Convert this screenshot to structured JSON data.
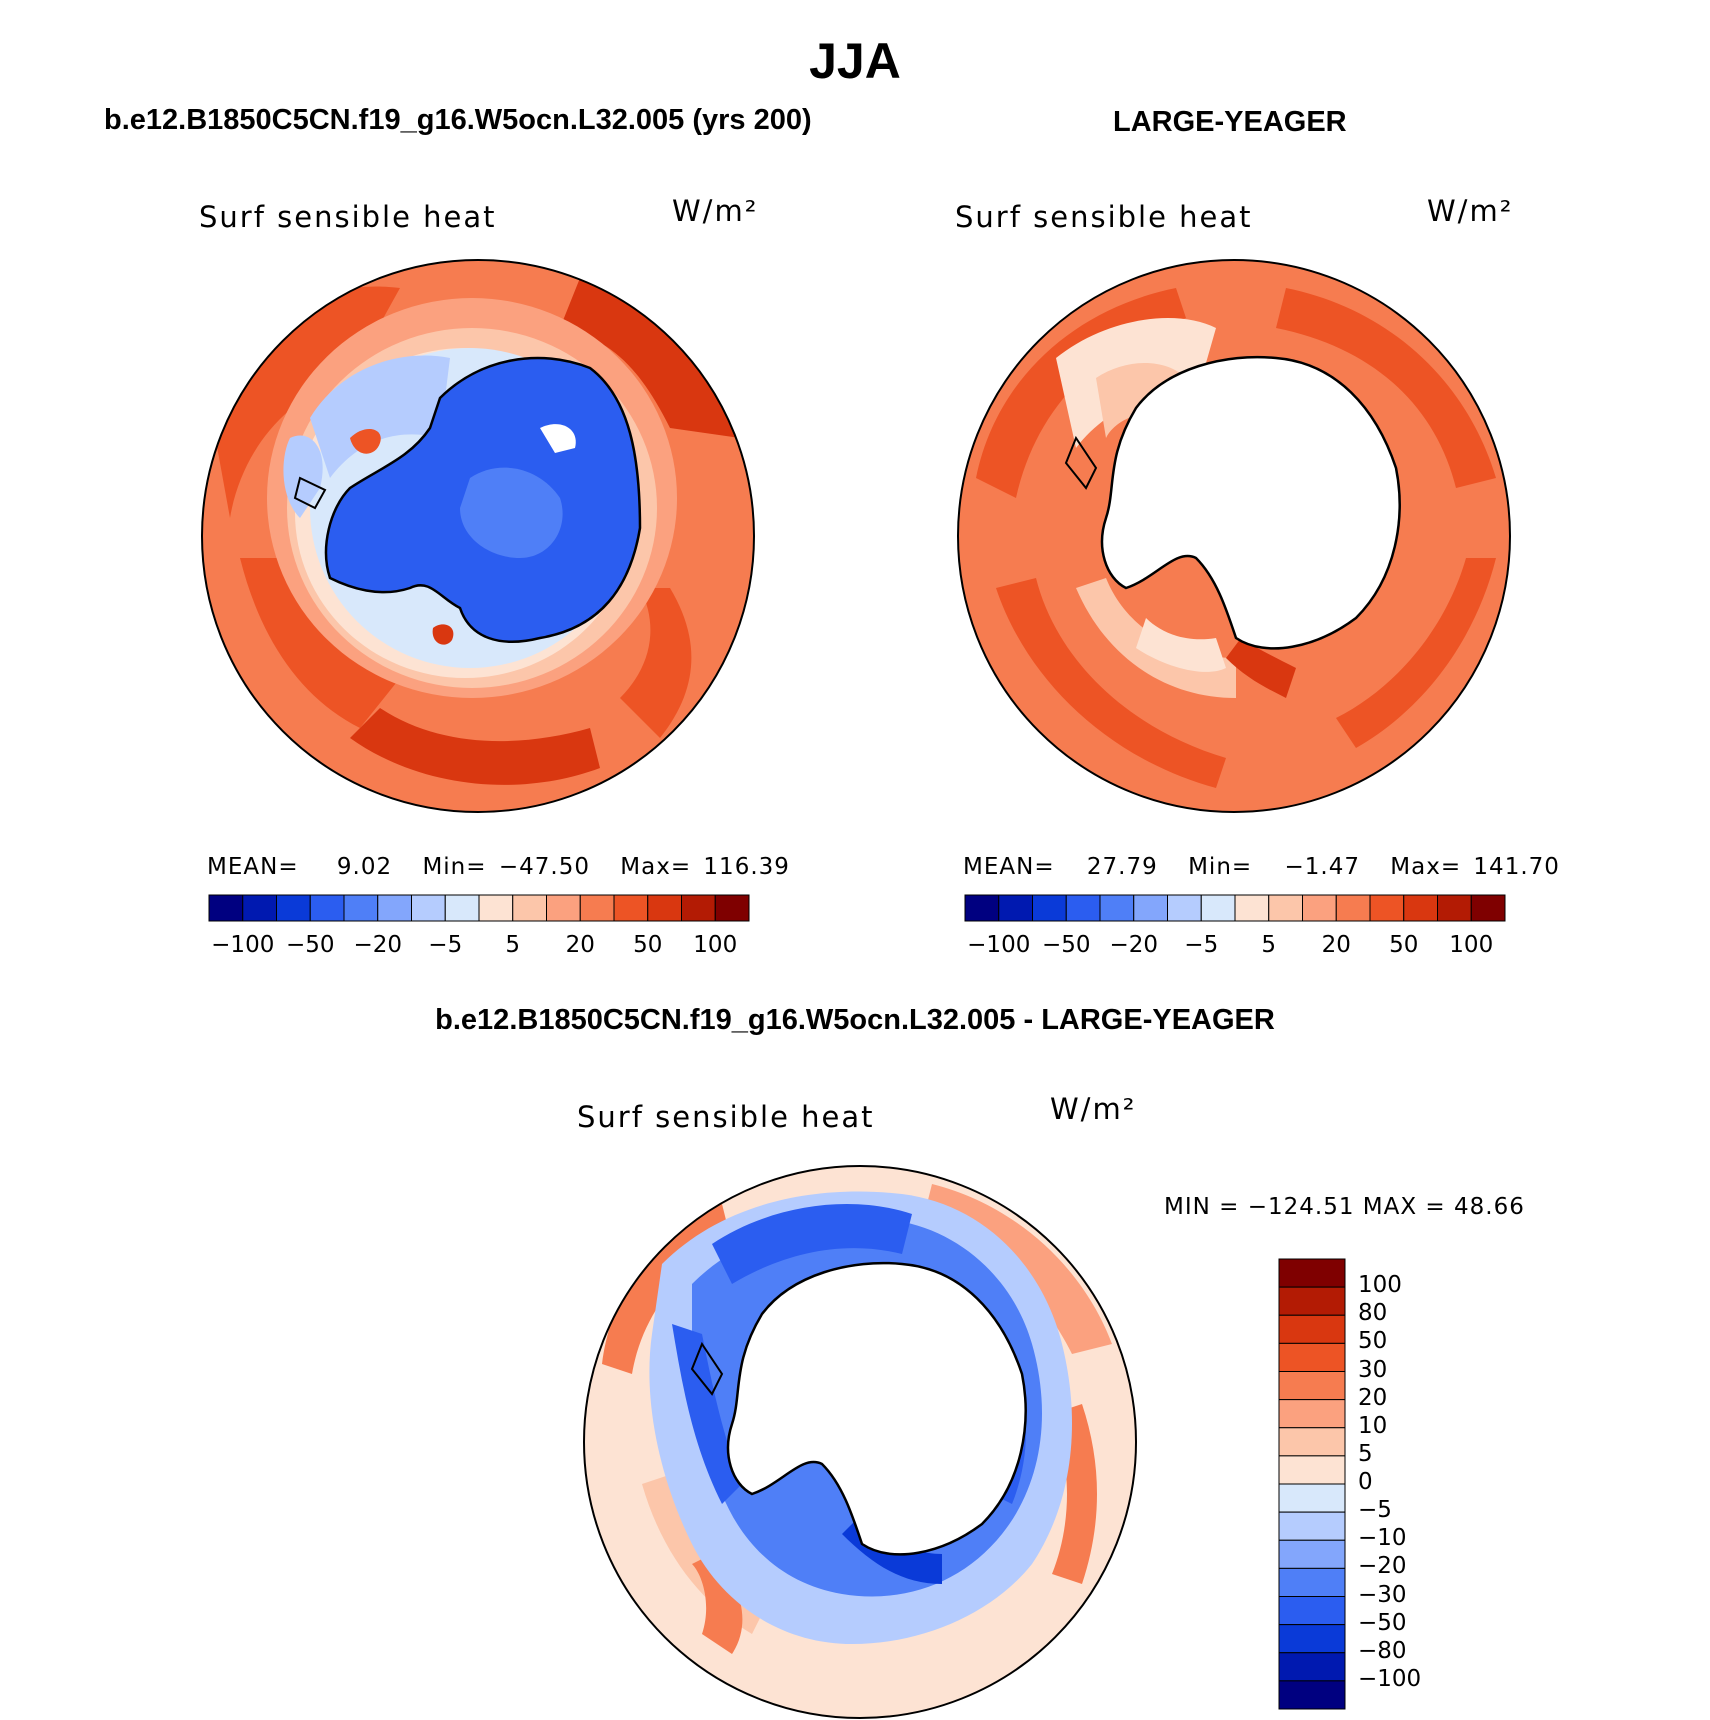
{
  "figure": {
    "title": "JJA",
    "variable": "Surf sensible heat",
    "units": "W/m²"
  },
  "panels": {
    "case": {
      "title": "b.e12.B1850C5CN.f19_g16.W5ocn.L32.005 (yrs 200)",
      "mean_label": "MEAN=",
      "mean": "9.02",
      "min_label": "Min=",
      "min": "−47.50",
      "max_label": "Max=",
      "max": "116.39"
    },
    "reference": {
      "title": "LARGE-YEAGER",
      "mean_label": "MEAN=",
      "mean": "27.79",
      "min_label": "Min=",
      "min": "−1.47",
      "max_label": "Max=",
      "max": "141.70"
    },
    "difference": {
      "title": "b.e12.B1850C5CN.f19_g16.W5ocn.L32.005 - LARGE-YEAGER",
      "minmax_text": "MIN = −124.51 MAX =  48.66"
    }
  },
  "colorbars": {
    "horizontal": {
      "colors": [
        "#000080",
        "#0019b0",
        "#0a3ad8",
        "#2b5df0",
        "#4f7ff7",
        "#83a6fc",
        "#b5ccfe",
        "#d8e8fb",
        "#fde3d3",
        "#fcc6aa",
        "#fba17f",
        "#f67c50",
        "#ed5425",
        "#d93710",
        "#b31b04",
        "#7f0000"
      ],
      "tick_labels": [
        "−100",
        "−50",
        "−20",
        "−5",
        "5",
        "20",
        "50",
        "100"
      ]
    },
    "vertical": {
      "colors": [
        "#7f0000",
        "#b31b04",
        "#d93710",
        "#ed5425",
        "#f67c50",
        "#fba17f",
        "#fcc6aa",
        "#fde3d3",
        "#d8e8fb",
        "#b5ccfe",
        "#83a6fc",
        "#4f7ff7",
        "#2b5df0",
        "#0a3ad8",
        "#0019b0",
        "#000080"
      ],
      "tick_labels": [
        "100",
        "80",
        "50",
        "30",
        "20",
        "10",
        "5",
        "0",
        "−5",
        "−10",
        "−20",
        "−30",
        "−50",
        "−80",
        "−100"
      ]
    }
  },
  "colors": {
    "ocean_warm": "#f67c50",
    "ocean_hot": "#d93710",
    "land_cold": "#2b5df0",
    "pale_blue": "#d8e8fb",
    "blank": "#ffffff"
  }
}
